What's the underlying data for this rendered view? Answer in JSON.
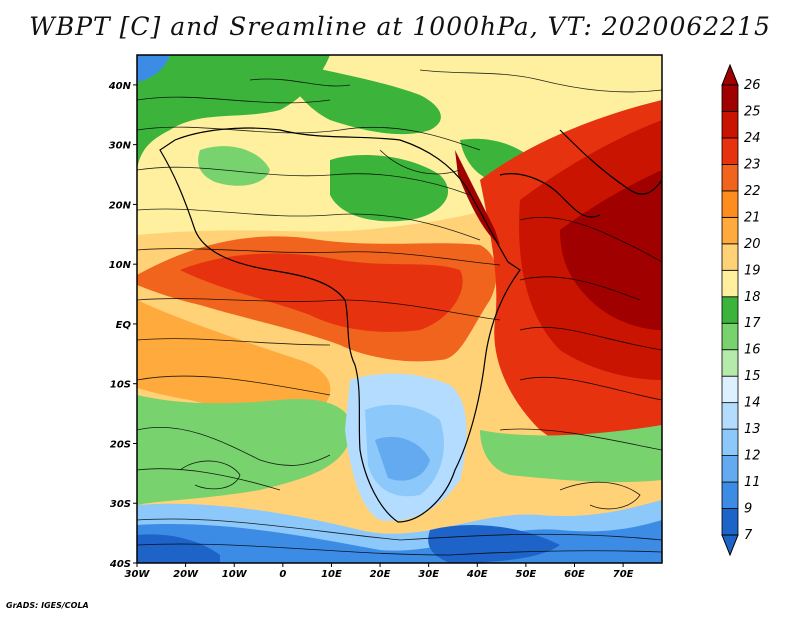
{
  "title": "WBPT [C] and Sreamline at 1000hPa, VT: 2020062215",
  "credit": "GrADS: IGES/COLA",
  "map": {
    "lon_labels": [
      "30W",
      "20W",
      "10W",
      "0",
      "10E",
      "20E",
      "30E",
      "40E",
      "50E",
      "60E",
      "70E"
    ],
    "lat_labels": [
      "40N",
      "30N",
      "20N",
      "10N",
      "EQ",
      "10S",
      "20S",
      "30S",
      "40S"
    ],
    "lon_range": [
      -30,
      78
    ],
    "lat_range": [
      -40,
      45
    ]
  },
  "colorbar": {
    "levels": [
      "7",
      "9",
      "11",
      "12",
      "13",
      "14",
      "15",
      "16",
      "17",
      "18",
      "19",
      "20",
      "21",
      "22",
      "23",
      "24",
      "25",
      "26"
    ],
    "colors": [
      "#1e64c8",
      "#3c8ce6",
      "#64aaf0",
      "#8cc8fa",
      "#b4dcff",
      "#dcf0ff",
      "#b4ebaa",
      "#78d26e",
      "#3cb43c",
      "#fff0a0",
      "#ffd278",
      "#ffaa3c",
      "#ff8c1e",
      "#f0641e",
      "#e6320f",
      "#c81400",
      "#a00000"
    ]
  }
}
